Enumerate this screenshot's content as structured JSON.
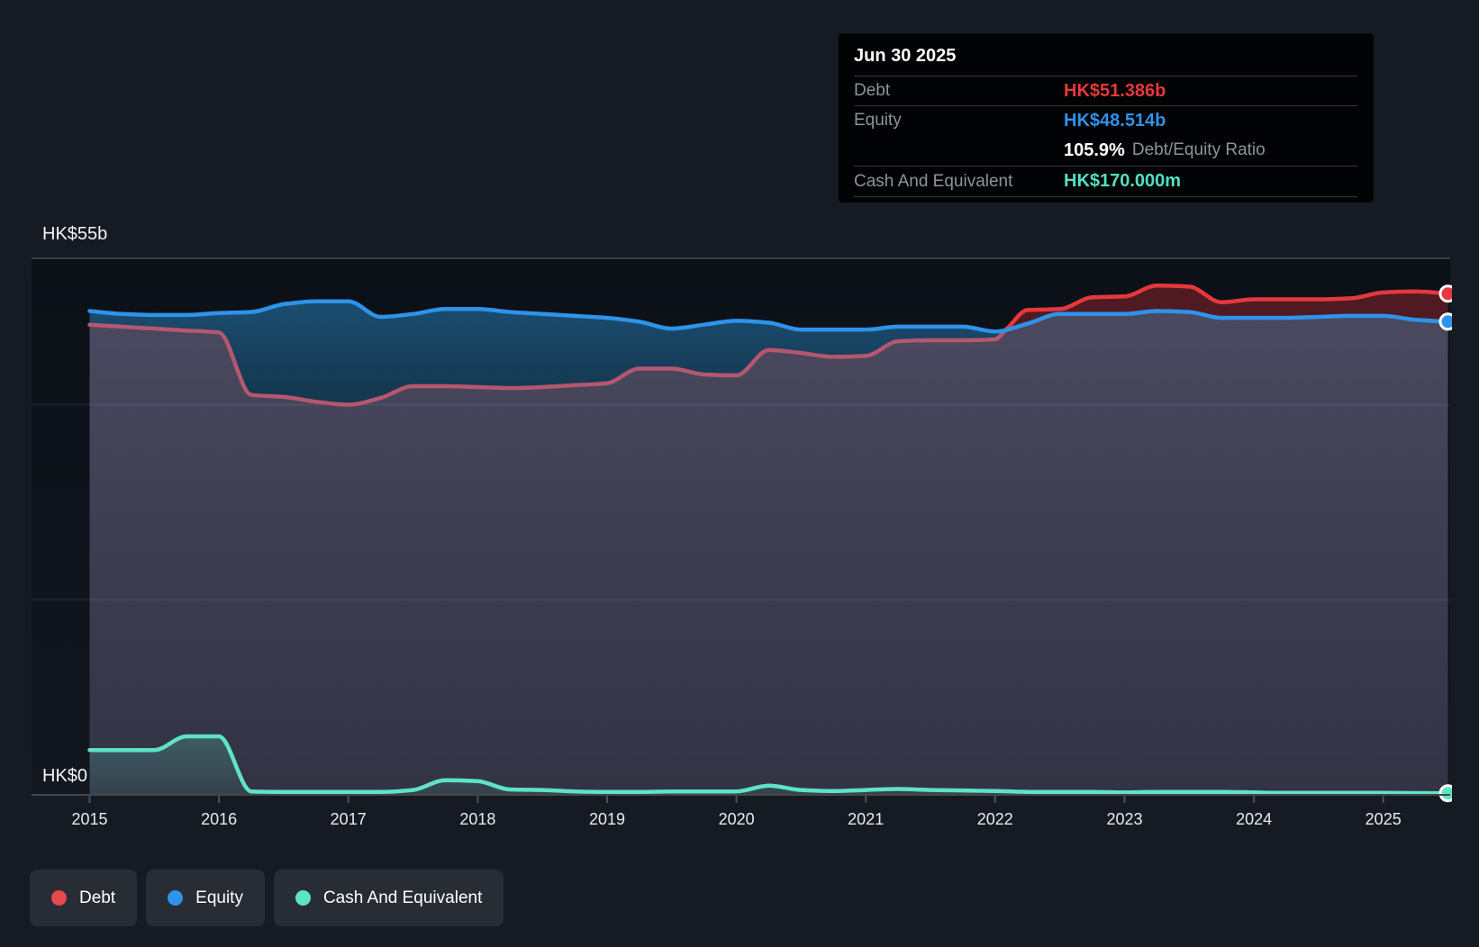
{
  "tooltip": {
    "date": "Jun 30 2025",
    "rows": [
      {
        "label": "Debt",
        "value": "HK$51.386b"
      },
      {
        "label": "Equity",
        "value": "HK$48.514b"
      },
      {
        "label": "Cash And Equivalent",
        "value": "HK$170.000m"
      }
    ],
    "ratio_value": "105.9%",
    "ratio_label": "Debt/Equity Ratio"
  },
  "axis": {
    "y_max_label": "HK$55b",
    "y_zero_label": "HK$0",
    "years": [
      "2015",
      "2016",
      "2017",
      "2018",
      "2019",
      "2020",
      "2021",
      "2022",
      "2023",
      "2024",
      "2025"
    ]
  },
  "legend": {
    "items": [
      {
        "label": "Debt",
        "color": "#e5484d"
      },
      {
        "label": "Equity",
        "color": "#2e93ea"
      },
      {
        "label": "Cash And Equivalent",
        "color": "#5fe3c5"
      }
    ]
  },
  "colors": {
    "background": "#161b23",
    "plot_background_top": "#0c1017",
    "plot_background_bottom": "#121720",
    "debt": "#e5383d",
    "debt_muted": "#b5576e",
    "equity": "#2e93ea",
    "cash": "#5fe3c5",
    "debt_band_fill": "rgba(213,45,55,0.34)",
    "equity_band_top": "rgba(35,115,170,0.62)",
    "equity_band_bottom": "rgba(28,90,128,0.50)",
    "base_band_top": "rgba(160,152,196,0.42)",
    "base_band_bottom": "rgba(140,132,170,0.26)",
    "cash_band_top": "rgba(95,227,197,0.22)",
    "cash_band_bottom": "rgba(95,227,197,0.08)",
    "grid_major": "rgba(255,255,255,0.18)",
    "grid_minor": "rgba(255,255,255,0.07)",
    "axis_line": "#40464f",
    "tick": "#4a5058",
    "year_text": "#e8ebef"
  },
  "chart_data": {
    "type": "area",
    "y_unit": "HK$ billions",
    "ylim": [
      0,
      55
    ],
    "gridline_values": [
      55,
      40,
      20,
      0
    ],
    "x_start": 2015.0,
    "x_end": 2025.5,
    "crossover_x": 2022.09,
    "x": [
      2015.0,
      2015.25,
      2015.5,
      2015.75,
      2016.0,
      2016.25,
      2016.5,
      2016.75,
      2017.0,
      2017.25,
      2017.5,
      2017.75,
      2018.0,
      2018.25,
      2018.5,
      2018.75,
      2019.0,
      2019.25,
      2019.5,
      2019.75,
      2020.0,
      2020.25,
      2020.5,
      2020.75,
      2021.0,
      2021.25,
      2021.5,
      2021.75,
      2022.0,
      2022.25,
      2022.5,
      2022.75,
      2023.0,
      2023.25,
      2023.5,
      2023.75,
      2024.0,
      2024.25,
      2024.5,
      2024.75,
      2025.0,
      2025.25,
      2025.5
    ],
    "series": [
      {
        "name": "Debt",
        "values": [
          48.2,
          48.0,
          47.8,
          47.6,
          47.4,
          41.0,
          40.8,
          40.3,
          40.0,
          40.7,
          41.9,
          41.9,
          41.8,
          41.7,
          41.8,
          42.0,
          42.2,
          43.7,
          43.7,
          43.1,
          43.0,
          45.6,
          45.3,
          44.9,
          45.0,
          46.5,
          46.6,
          46.6,
          46.7,
          49.7,
          49.8,
          51.0,
          51.1,
          52.2,
          52.1,
          50.5,
          50.8,
          50.8,
          50.8,
          50.9,
          51.5,
          51.6,
          51.386
        ]
      },
      {
        "name": "Equity",
        "values": [
          49.6,
          49.3,
          49.2,
          49.2,
          49.4,
          49.5,
          50.3,
          50.6,
          50.6,
          49.0,
          49.3,
          49.8,
          49.8,
          49.5,
          49.3,
          49.1,
          48.9,
          48.5,
          47.8,
          48.2,
          48.6,
          48.4,
          47.7,
          47.7,
          47.7,
          48.0,
          48.0,
          48.0,
          47.5,
          48.3,
          49.3,
          49.3,
          49.3,
          49.6,
          49.5,
          48.9,
          48.9,
          48.9,
          49.0,
          49.1,
          49.1,
          48.7,
          48.514
        ]
      },
      {
        "name": "Cash And Equivalent",
        "values": [
          4.6,
          4.6,
          4.6,
          6.0,
          6.0,
          0.35,
          0.3,
          0.3,
          0.3,
          0.3,
          0.5,
          1.5,
          1.4,
          0.55,
          0.5,
          0.35,
          0.3,
          0.3,
          0.35,
          0.35,
          0.35,
          0.95,
          0.5,
          0.4,
          0.5,
          0.6,
          0.5,
          0.45,
          0.4,
          0.3,
          0.3,
          0.3,
          0.25,
          0.3,
          0.3,
          0.3,
          0.25,
          0.2,
          0.2,
          0.2,
          0.2,
          0.18,
          0.17
        ]
      }
    ],
    "end_values": {
      "debt": 51.386,
      "equity": 48.514,
      "cash": 0.17
    },
    "legend_position": "bottom-left"
  }
}
